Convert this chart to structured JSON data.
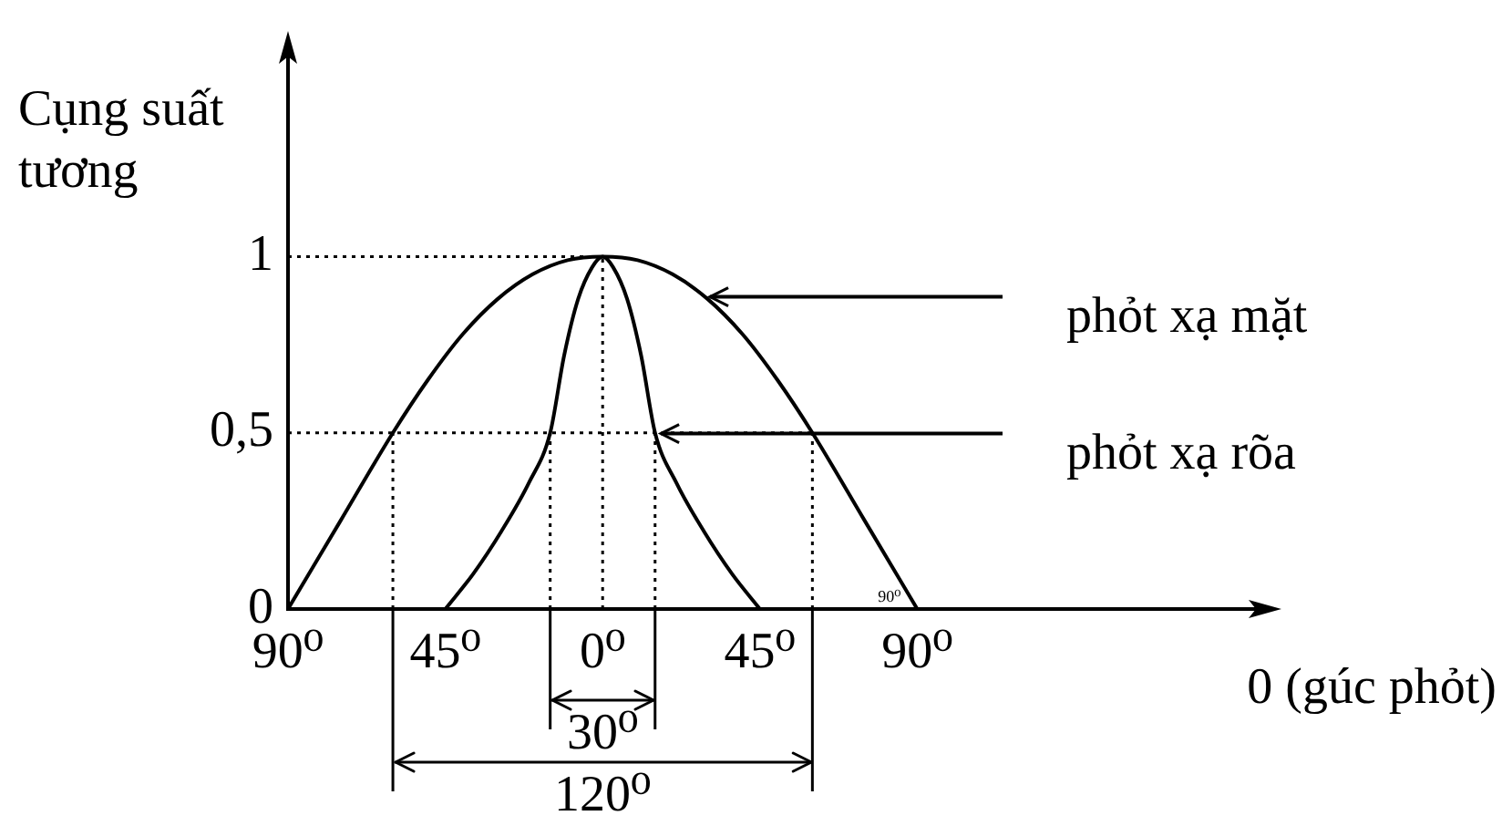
{
  "chart_data": {
    "type": "line",
    "xlabel": "0 (gúc phỏt)",
    "ylabel": "Cụng suất tương",
    "series": [
      {
        "name": "phỏt xạ mặt",
        "color": "#000000",
        "x": [
          -90,
          -75,
          -60,
          -50,
          -40,
          -30,
          -20,
          -10,
          0,
          10,
          20,
          30,
          40,
          50,
          60,
          75,
          90
        ],
        "values": [
          0,
          0.25,
          0.5,
          0.65,
          0.78,
          0.88,
          0.95,
          0.99,
          1,
          0.99,
          0.95,
          0.88,
          0.78,
          0.65,
          0.5,
          0.25,
          0
        ]
      },
      {
        "name": "phỏt xạ rõa",
        "color": "#000000",
        "x": [
          -45,
          -37,
          -29,
          -21,
          -15,
          -11,
          -7,
          -3,
          0,
          3,
          7,
          11,
          15,
          21,
          29,
          37,
          45
        ],
        "values": [
          0,
          0.1,
          0.22,
          0.36,
          0.5,
          0.72,
          0.88,
          0.97,
          1,
          0.97,
          0.88,
          0.72,
          0.5,
          0.36,
          0.22,
          0.1,
          0
        ]
      }
    ],
    "xlim": [
      -90,
      190
    ],
    "xticks": [
      {
        "value": -90,
        "label": "90⁰"
      },
      {
        "value": -45,
        "label": "45⁰"
      },
      {
        "value": 0,
        "label": "0⁰"
      },
      {
        "value": 45,
        "label": "45⁰"
      },
      {
        "value": 90,
        "label": "90⁰"
      }
    ],
    "ylim": [
      0,
      1.6
    ],
    "yticks": [
      0,
      {
        "value": 0.5,
        "label": "0,5"
      },
      1
    ],
    "ref_lines": [
      {
        "axis": "y",
        "value": 1,
        "line_style": "dotted"
      },
      {
        "axis": "y",
        "value": 0.5,
        "line_style": "dotted"
      },
      {
        "axis": "x",
        "value": -60,
        "line_style": "dotted"
      },
      {
        "axis": "x",
        "value": -15,
        "line_style": "dotted"
      },
      {
        "axis": "x",
        "value": 0,
        "line_style": "dotted"
      },
      {
        "axis": "x",
        "value": 15,
        "line_style": "dotted"
      },
      {
        "axis": "x",
        "value": 60,
        "line_style": "dotted"
      }
    ],
    "annotations": [
      "30⁰",
      "120⁰",
      {
        "text": "90⁰",
        "x": 90,
        "y": 0
      }
    ],
    "grid": false,
    "marker": "none",
    "line_style": "solid"
  }
}
